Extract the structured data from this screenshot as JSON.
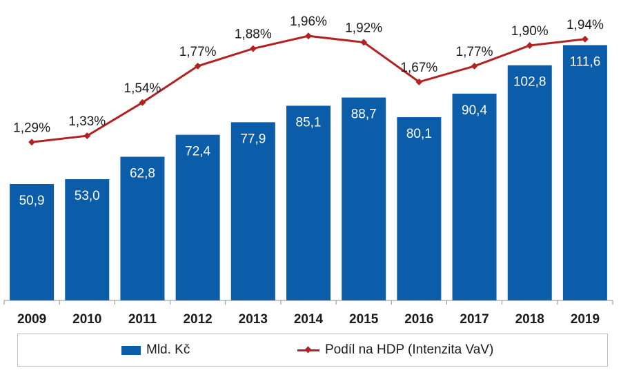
{
  "chart_data": {
    "type": "bar",
    "categories": [
      "2009",
      "2010",
      "2011",
      "2012",
      "2013",
      "2014",
      "2015",
      "2016",
      "2017",
      "2018",
      "2019"
    ],
    "series": [
      {
        "name": "Mld. Kč",
        "type": "bar",
        "color": "#0b5ca9",
        "values": [
          50.9,
          53.0,
          62.8,
          72.4,
          77.9,
          85.1,
          88.7,
          80.1,
          90.4,
          102.8,
          111.6
        ],
        "labels": [
          "50,9",
          "53,0",
          "62,8",
          "72,4",
          "77,9",
          "85,1",
          "88,7",
          "80,1",
          "90,4",
          "102,8",
          "111,6"
        ]
      },
      {
        "name": "Podíl na HDP (Intenzita VaV)",
        "type": "line",
        "color": "#b22222",
        "values": [
          1.29,
          1.33,
          1.54,
          1.77,
          1.88,
          1.96,
          1.92,
          1.67,
          1.77,
          1.9,
          1.94
        ],
        "labels": [
          "1,29%",
          "1,33%",
          "1,54%",
          "1,77%",
          "1,88%",
          "1,96%",
          "1,92%",
          "1,67%",
          "1,77%",
          "1,90%",
          "1,94%"
        ]
      }
    ],
    "ylim_bar": [
      0,
      112
    ],
    "ylim_line": [
      0.75,
      2.2
    ],
    "grid": false,
    "legend": "bottom",
    "title": "",
    "xlabel": "",
    "ylabel": ""
  }
}
